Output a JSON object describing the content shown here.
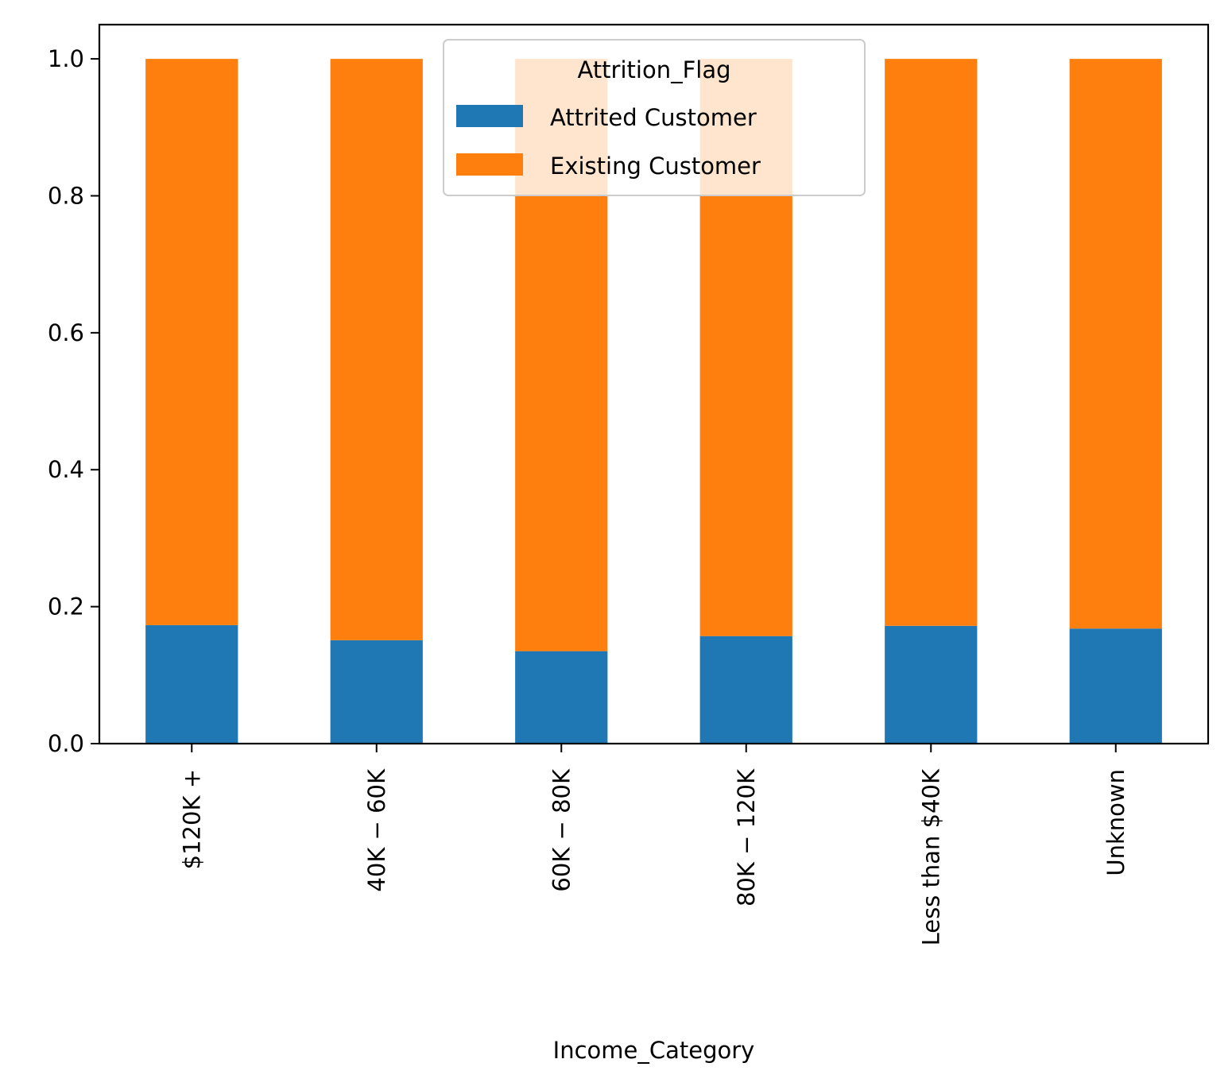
{
  "chart_data": {
    "type": "bar",
    "stacked": true,
    "categories": [
      "$120K +",
      "$40K - $60K",
      "$60K - $80K",
      "$80K - $120K",
      "Less than $40K",
      "Unknown"
    ],
    "category_tick_labels": [
      "$120K +",
      "40K − 60K",
      "60K − 80K",
      "80K − 120K",
      "Less than $40K",
      "Unknown"
    ],
    "series": [
      {
        "name": "Attrited Customer",
        "color": "#1f77b4",
        "values": [
          0.173,
          0.151,
          0.135,
          0.157,
          0.172,
          0.168
        ]
      },
      {
        "name": "Existing Customer",
        "color": "#ff7f0e",
        "values": [
          0.827,
          0.849,
          0.865,
          0.843,
          0.828,
          0.832
        ]
      }
    ],
    "title": "",
    "xlabel": "Income_Category",
    "ylabel": "",
    "ylim": [
      0,
      1.05
    ],
    "yticks": [
      0.0,
      0.2,
      0.4,
      0.6,
      0.8,
      1.0
    ],
    "ytick_labels": [
      "0.0",
      "0.2",
      "0.4",
      "0.6",
      "0.8",
      "1.0"
    ],
    "grid": false,
    "legend": {
      "title": "Attrition_Flag",
      "placement": "upper-center"
    }
  }
}
